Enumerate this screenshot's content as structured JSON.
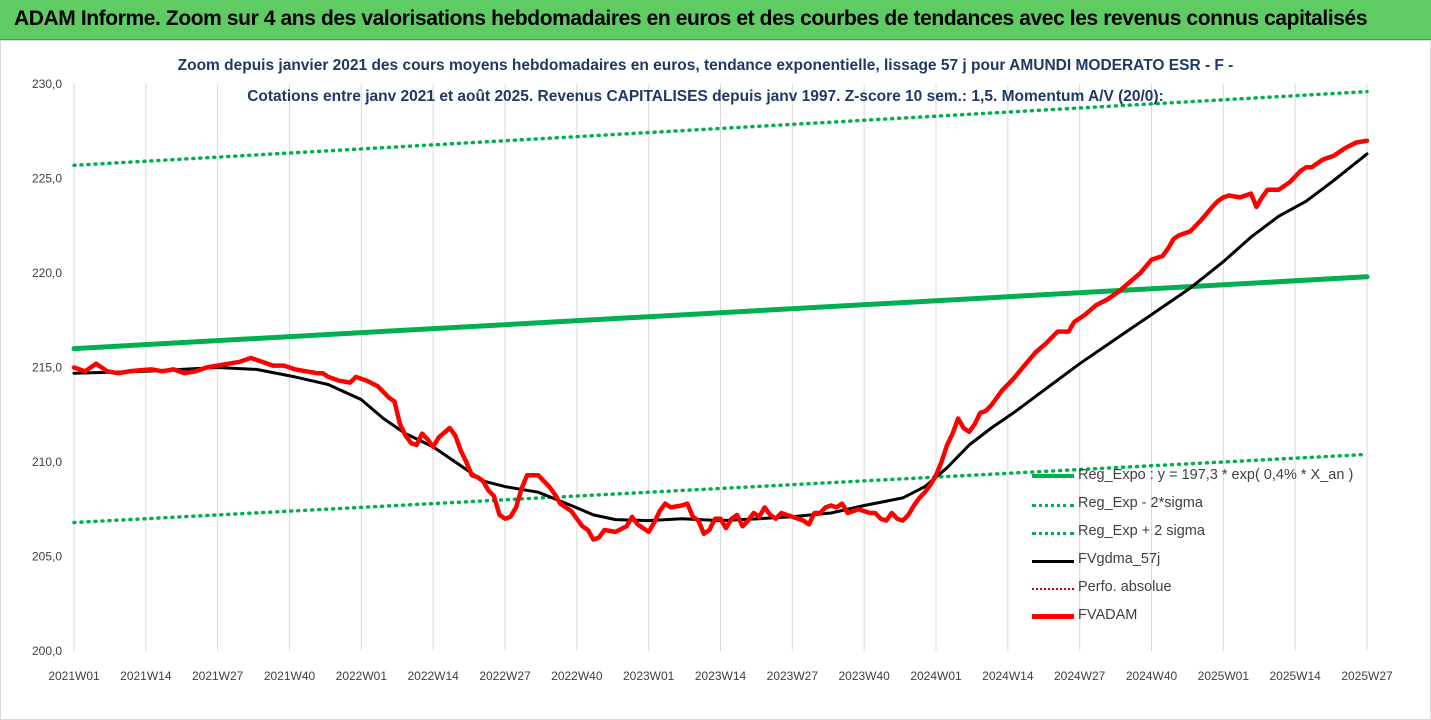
{
  "banner": {
    "title": "ADAM Informe. Zoom sur 4 ans des valorisations hebdomadaires en euros et des courbes de tendances avec les revenus connus capitalisés"
  },
  "chart_data": {
    "type": "line",
    "title_line1": "Zoom depuis janvier 2021 des cours moyens hebdomadaires en euros, tendance exponentielle, lissage 57 j pour AMUNDI MODERATO ESR - F -",
    "title_line2": "Cotations entre janv 2021 et août 2025. Revenus CAPITALISES depuis janv 1997. Z-score 10 sem.: 1,5. Momentum A/V (20/0):",
    "ylim": [
      200,
      230
    ],
    "y_ticks": [
      "200,0",
      "205,0",
      "210,0",
      "215,0",
      "220,0",
      "225,0",
      "230,0"
    ],
    "x_ticks": [
      "2021W01",
      "2021W14",
      "2021W27",
      "2021W40",
      "2022W01",
      "2022W14",
      "2022W27",
      "2022W40",
      "2023W01",
      "2023W14",
      "2023W27",
      "2023W40",
      "2024W01",
      "2024W14",
      "2024W27",
      "2024W40",
      "2025W01",
      "2025W14",
      "2025W27"
    ],
    "grid": "vertical",
    "legend_position": "bottom-right",
    "colors": {
      "reg_expo": "#00b050",
      "reg_bands": "#00b050",
      "fvgdma": "#000000",
      "perfo": "#c00000",
      "fvadam": "#ff0000"
    },
    "series": [
      {
        "name": "Reg_Expo : y = 197,3 * exp( 0,4% * X_an )",
        "style": "solid-thick",
        "points": [
          [
            0,
            216.0
          ],
          [
            234,
            219.8
          ]
        ]
      },
      {
        "name": "Reg_Exp - 2*sigma",
        "style": "dotted",
        "points": [
          [
            0,
            206.8
          ],
          [
            234,
            210.4
          ]
        ]
      },
      {
        "name": "Reg_Exp + 2 sigma",
        "style": "dotted",
        "points": [
          [
            0,
            225.7
          ],
          [
            234,
            229.6
          ]
        ]
      },
      {
        "name": "FVgdma_57j",
        "style": "solid",
        "points": [
          [
            0,
            214.7
          ],
          [
            13,
            214.8
          ],
          [
            26,
            215.0
          ],
          [
            33,
            214.9
          ],
          [
            40,
            214.5
          ],
          [
            46,
            214.1
          ],
          [
            52,
            213.3
          ],
          [
            56,
            212.3
          ],
          [
            60,
            211.5
          ],
          [
            65,
            210.8
          ],
          [
            70,
            209.8
          ],
          [
            74,
            209.0
          ],
          [
            78,
            208.7
          ],
          [
            84,
            208.4
          ],
          [
            90,
            207.7
          ],
          [
            94,
            207.2
          ],
          [
            98,
            206.95
          ],
          [
            104,
            206.9
          ],
          [
            110,
            207.0
          ],
          [
            117,
            206.9
          ],
          [
            124,
            207.0
          ],
          [
            130,
            207.1
          ],
          [
            137,
            207.3
          ],
          [
            143,
            207.7
          ],
          [
            150,
            208.1
          ],
          [
            154,
            208.7
          ],
          [
            158,
            209.7
          ],
          [
            162,
            210.9
          ],
          [
            166,
            211.8
          ],
          [
            170,
            212.6
          ],
          [
            176,
            213.9
          ],
          [
            182,
            215.2
          ],
          [
            188,
            216.4
          ],
          [
            195,
            217.8
          ],
          [
            202,
            219.2
          ],
          [
            208,
            220.6
          ],
          [
            213,
            221.9
          ],
          [
            218,
            223.0
          ],
          [
            223,
            223.8
          ],
          [
            228,
            224.9
          ],
          [
            234,
            226.3
          ]
        ]
      },
      {
        "name": "Perfo. absolue",
        "style": "dotted",
        "points": []
      },
      {
        "name": "FVADAM",
        "style": "solid-thick",
        "points": [
          [
            0,
            215.0
          ],
          [
            2,
            214.8
          ],
          [
            4,
            215.2
          ],
          [
            6,
            214.8
          ],
          [
            8,
            214.7
          ],
          [
            10,
            214.8
          ],
          [
            12,
            214.85
          ],
          [
            14,
            214.9
          ],
          [
            16,
            214.8
          ],
          [
            18,
            214.9
          ],
          [
            20,
            214.7
          ],
          [
            22,
            214.8
          ],
          [
            24,
            215.0
          ],
          [
            26,
            215.1
          ],
          [
            28,
            215.2
          ],
          [
            30,
            215.3
          ],
          [
            32,
            215.5
          ],
          [
            34,
            215.3
          ],
          [
            36,
            215.1
          ],
          [
            38,
            215.1
          ],
          [
            40,
            214.9
          ],
          [
            42,
            214.8
          ],
          [
            44,
            214.7
          ],
          [
            45,
            214.7
          ],
          [
            46,
            214.5
          ],
          [
            48,
            214.3
          ],
          [
            50,
            214.2
          ],
          [
            51,
            214.5
          ],
          [
            53,
            214.3
          ],
          [
            55,
            214.0
          ],
          [
            57,
            213.4
          ],
          [
            58,
            213.2
          ],
          [
            59,
            212.0
          ],
          [
            60,
            211.4
          ],
          [
            61,
            211.0
          ],
          [
            62,
            210.9
          ],
          [
            63,
            211.5
          ],
          [
            64,
            211.2
          ],
          [
            65,
            210.8
          ],
          [
            66,
            211.3
          ],
          [
            68,
            211.8
          ],
          [
            69,
            211.4
          ],
          [
            70,
            210.6
          ],
          [
            71,
            210.0
          ],
          [
            72,
            209.3
          ],
          [
            73,
            209.2
          ],
          [
            74,
            209.0
          ],
          [
            75,
            208.5
          ],
          [
            76,
            208.2
          ],
          [
            77,
            207.2
          ],
          [
            78,
            207.0
          ],
          [
            79,
            207.1
          ],
          [
            80,
            207.6
          ],
          [
            81,
            208.6
          ],
          [
            82,
            209.3
          ],
          [
            84,
            209.3
          ],
          [
            86,
            208.7
          ],
          [
            87,
            208.3
          ],
          [
            88,
            207.8
          ],
          [
            90,
            207.4
          ],
          [
            91,
            207.0
          ],
          [
            92,
            206.6
          ],
          [
            93,
            206.4
          ],
          [
            94,
            205.9
          ],
          [
            95,
            206.0
          ],
          [
            96,
            206.4
          ],
          [
            98,
            206.3
          ],
          [
            100,
            206.6
          ],
          [
            101,
            207.1
          ],
          [
            102,
            206.7
          ],
          [
            103,
            206.5
          ],
          [
            104,
            206.3
          ],
          [
            105,
            206.8
          ],
          [
            106,
            207.4
          ],
          [
            107,
            207.8
          ],
          [
            108,
            207.6
          ],
          [
            110,
            207.7
          ],
          [
            111,
            207.8
          ],
          [
            112,
            207.1
          ],
          [
            113,
            206.9
          ],
          [
            114,
            206.2
          ],
          [
            115,
            206.4
          ],
          [
            116,
            207.0
          ],
          [
            117,
            207.0
          ],
          [
            118,
            206.5
          ],
          [
            119,
            207.0
          ],
          [
            120,
            207.2
          ],
          [
            121,
            206.6
          ],
          [
            122,
            206.9
          ],
          [
            123,
            207.3
          ],
          [
            124,
            207.1
          ],
          [
            125,
            207.6
          ],
          [
            126,
            207.2
          ],
          [
            127,
            207.0
          ],
          [
            128,
            207.3
          ],
          [
            130,
            207.1
          ],
          [
            132,
            206.9
          ],
          [
            133,
            206.7
          ],
          [
            134,
            207.3
          ],
          [
            135,
            207.3
          ],
          [
            136,
            207.6
          ],
          [
            137,
            207.7
          ],
          [
            138,
            207.6
          ],
          [
            139,
            207.8
          ],
          [
            140,
            207.3
          ],
          [
            142,
            207.5
          ],
          [
            144,
            207.3
          ],
          [
            145,
            207.3
          ],
          [
            146,
            207.0
          ],
          [
            147,
            206.9
          ],
          [
            148,
            207.3
          ],
          [
            149,
            207.0
          ],
          [
            150,
            206.9
          ],
          [
            151,
            207.2
          ],
          [
            152,
            207.7
          ],
          [
            153,
            208.1
          ],
          [
            154,
            208.4
          ],
          [
            155,
            208.8
          ],
          [
            156,
            209.3
          ],
          [
            157,
            210.0
          ],
          [
            158,
            210.9
          ],
          [
            159,
            211.5
          ],
          [
            160,
            212.3
          ],
          [
            161,
            211.8
          ],
          [
            162,
            211.6
          ],
          [
            163,
            212.0
          ],
          [
            164,
            212.6
          ],
          [
            165,
            212.7
          ],
          [
            166,
            213.0
          ],
          [
            168,
            213.8
          ],
          [
            170,
            214.4
          ],
          [
            172,
            215.1
          ],
          [
            174,
            215.8
          ],
          [
            176,
            216.3
          ],
          [
            178,
            216.9
          ],
          [
            180,
            216.9
          ],
          [
            181,
            217.4
          ],
          [
            183,
            217.8
          ],
          [
            185,
            218.3
          ],
          [
            187,
            218.6
          ],
          [
            189,
            219.0
          ],
          [
            191,
            219.5
          ],
          [
            193,
            220.0
          ],
          [
            195,
            220.7
          ],
          [
            197,
            220.9
          ],
          [
            198,
            221.3
          ],
          [
            199,
            221.8
          ],
          [
            200,
            222.0
          ],
          [
            202,
            222.2
          ],
          [
            204,
            222.8
          ],
          [
            206,
            223.5
          ],
          [
            207,
            223.8
          ],
          [
            208,
            224.0
          ],
          [
            209,
            224.1
          ],
          [
            211,
            224.0
          ],
          [
            213,
            224.2
          ],
          [
            214,
            223.5
          ],
          [
            215,
            224.0
          ],
          [
            216,
            224.4
          ],
          [
            218,
            224.4
          ],
          [
            220,
            224.8
          ],
          [
            222,
            225.4
          ],
          [
            223,
            225.6
          ],
          [
            224,
            225.6
          ],
          [
            226,
            226.0
          ],
          [
            228,
            226.2
          ],
          [
            230,
            226.6
          ],
          [
            232,
            226.9
          ],
          [
            234,
            227.0
          ]
        ]
      }
    ],
    "legend_labels": [
      "Reg_Expo : y = 197,3 * exp( 0,4% *  X_an )",
      "Reg_Exp - 2*sigma",
      "Reg_Exp + 2 sigma",
      "FVgdma_57j",
      "Perfo. absolue",
      "FVADAM"
    ]
  }
}
